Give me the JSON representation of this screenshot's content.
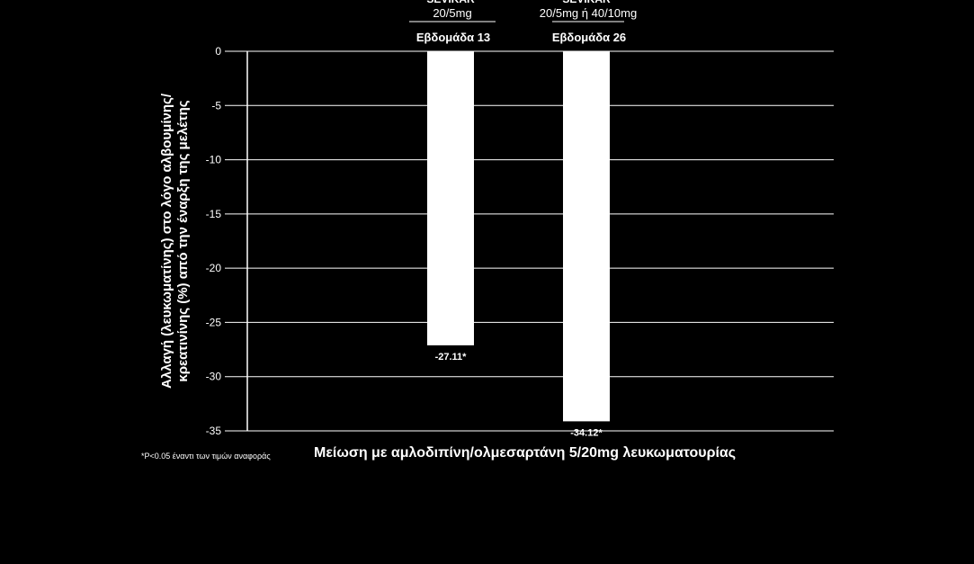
{
  "chart_data": {
    "type": "bar",
    "title": "",
    "xlabel": "Μείωση με αμλοδιπίνη/ολμεσαρτάνη 5/20mg λευκωματουρίας",
    "ylabel_line1": "Αλλαγή (λευκωματίνης) στο λόγο αλβουμίνης/",
    "ylabel_line2": "κρεατινίνης (%) από την έναρξη της μελέτης",
    "ylim": [
      -35,
      0
    ],
    "yticks": [
      0,
      -5,
      -10,
      -15,
      -20,
      -25,
      -30,
      -35
    ],
    "grid": true,
    "bar_color": "#ffffff",
    "categories": [
      {
        "name": "SEVIKAR",
        "dose": "20/5mg",
        "week": "Εβδομάδα 13"
      },
      {
        "name": "SEVIKAR",
        "dose": "20/5mg ή 40/10mg",
        "week": "Εβδομάδα 26"
      }
    ],
    "values": [
      -27.11,
      -34.12
    ],
    "value_labels": [
      "-27.11*",
      "-34.12*"
    ]
  },
  "footnote": "*P<0.05 έναντι των τιμών αναφοράς"
}
